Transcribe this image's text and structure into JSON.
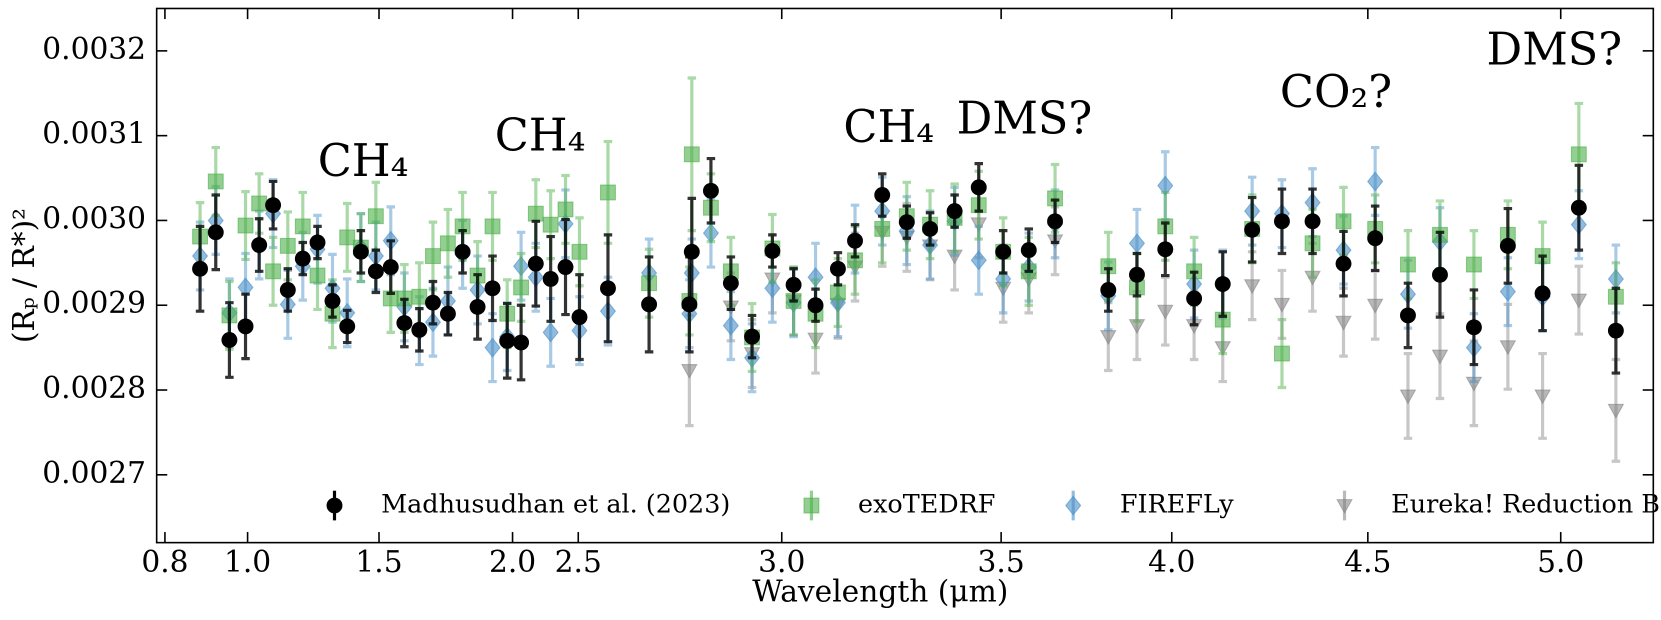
{
  "chart_data": {
    "type": "errorbar",
    "xlabel": "Wavelength (μm)",
    "ylabel": "(Rₚ / R*)²",
    "annotations": [
      "CH₄",
      "CH₄",
      "CH₄",
      "DMS?",
      "CO₂?",
      "DMS?"
    ],
    "xscale": "piecewise",
    "xlim": [
      0.78,
      5.24
    ],
    "ylim": [
      0.00262,
      0.00325
    ],
    "xticks": [
      0.8,
      {
        "value": 1.0,
        "label": "1.0"
      },
      1.5,
      {
        "value": 2.0,
        "label": "2.0"
      },
      2.5,
      {
        "value": 3.0,
        "label": "3.0"
      },
      3.5,
      {
        "value": 4.0,
        "label": "4.0"
      },
      4.5,
      {
        "value": 5.0,
        "label": "5.0"
      }
    ],
    "yticks": [
      0.0027,
      0.0028,
      0.0029,
      {
        "value": 0.003,
        "label": "0.0030"
      },
      0.0031,
      0.0032
    ],
    "legend": "lower center",
    "x": [
      0.885,
      0.923,
      0.956,
      0.995,
      1.044,
      1.097,
      1.153,
      1.21,
      1.266,
      1.323,
      1.379,
      1.431,
      1.488,
      1.544,
      1.595,
      1.651,
      1.702,
      1.758,
      1.813,
      1.869,
      1.925,
      1.98,
      2.065,
      2.177,
      2.29,
      2.403,
      2.503,
      2.573,
      2.674,
      2.773,
      2.779,
      2.826,
      2.875,
      2.927,
      2.977,
      3.027,
      3.077,
      3.128,
      3.167,
      3.229,
      3.285,
      3.338,
      3.394,
      3.449,
      3.506,
      3.581,
      3.658,
      3.814,
      3.898,
      3.981,
      4.057,
      4.13,
      4.205,
      4.281,
      4.359,
      4.438,
      4.519,
      4.604,
      4.687,
      4.775,
      4.863,
      4.953,
      5.047,
      5.143
    ],
    "series": [
      {
        "name": "Madhusudhan et al. (2023)",
        "color": "#000000",
        "marker": "circle",
        "values": [
          0.002943,
          0.002986,
          0.002859,
          0.002875,
          0.002971,
          0.003018,
          0.002918,
          0.002955,
          0.002974,
          0.002905,
          0.002875,
          0.002963,
          0.00294,
          0.002945,
          0.002879,
          0.002871,
          0.002903,
          0.00289,
          0.002963,
          0.002898,
          0.00292,
          0.002858,
          0.002856,
          0.002949,
          0.002931,
          0.002945,
          0.002886,
          0.00292,
          0.002901,
          0.002901,
          0.002963,
          0.003035,
          0.002926,
          0.002863,
          0.002964,
          0.002924,
          0.0029,
          0.002943,
          0.002976,
          0.00303,
          0.002998,
          0.00299,
          0.003011,
          0.003039,
          0.002963,
          0.002965,
          0.002999,
          0.002918,
          0.002936,
          0.002966,
          0.002908,
          0.002925,
          0.002989,
          0.002999,
          0.002999,
          0.002949,
          0.002979,
          0.002888,
          0.002936,
          0.002874,
          0.00297,
          0.002914,
          0.003015,
          0.00287
        ],
        "errors": [
          5e-05,
          4.4e-05,
          4.4e-05,
          3.8e-05,
          3.1e-05,
          2.8e-05,
          2.5e-05,
          1.9e-05,
          1.9e-05,
          1.9e-05,
          1.9e-05,
          2.5e-05,
          2.5e-05,
          3.1e-05,
          2.8e-05,
          2.5e-05,
          2.5e-05,
          2.5e-05,
          2.5e-05,
          3.8e-05,
          3.8e-05,
          4.4e-05,
          4.4e-05,
          5e-05,
          5e-05,
          5.6e-05,
          5e-05,
          6.3e-05,
          5.6e-05,
          5.6e-05,
          6.3e-05,
          3.8e-05,
          3.1e-05,
          2.5e-05,
          1.9e-05,
          1.9e-05,
          1.9e-05,
          1.9e-05,
          1.9e-05,
          2.5e-05,
          1.9e-05,
          1.9e-05,
          1.9e-05,
          2.8e-05,
          2.5e-05,
          2.5e-05,
          2.5e-05,
          2.5e-05,
          2.5e-05,
          3.1e-05,
          3.1e-05,
          3.8e-05,
          3.8e-05,
          3.8e-05,
          3.8e-05,
          3.8e-05,
          3.8e-05,
          3.8e-05,
          5e-05,
          4.4e-05,
          4.4e-05,
          4.4e-05,
          5e-05,
          5e-05
        ]
      },
      {
        "name": "exoTEDRF",
        "color": "#4daf4a",
        "marker": "square",
        "values": [
          0.002981,
          0.003046,
          0.002888,
          0.002994,
          0.00302,
          0.00294,
          0.00297,
          0.002993,
          0.002935,
          0.00289,
          0.00298,
          0.002968,
          0.003005,
          0.002908,
          0.002908,
          0.00291,
          0.002958,
          0.002973,
          0.002993,
          0.002935,
          0.002993,
          0.00289,
          0.002921,
          0.003008,
          0.002995,
          0.003013,
          0.002963,
          0.003033,
          0.002926,
          0.002905,
          0.003078,
          0.003015,
          0.00294,
          0.002862,
          0.002967,
          0.002905,
          0.00289,
          0.002915,
          0.002953,
          0.00299,
          0.003005,
          0.002995,
          0.003003,
          0.003018,
          0.002963,
          0.00294,
          0.003026,
          0.002946,
          0.002921,
          0.002993,
          0.00294,
          0.002883,
          0.00299,
          0.002843,
          0.002973,
          0.002999,
          0.00299,
          0.002948,
          0.002983,
          0.002948,
          0.002983,
          0.002958,
          0.003078,
          0.00291
        ],
        "errors": [
          4e-05,
          4e-05,
          4e-05,
          4e-05,
          3.5e-05,
          4e-05,
          4e-05,
          4e-05,
          4e-05,
          4e-05,
          4e-05,
          4e-05,
          4e-05,
          4e-05,
          4e-05,
          4e-05,
          4e-05,
          4e-05,
          4e-05,
          4e-05,
          4e-05,
          4e-05,
          4e-05,
          4e-05,
          4e-05,
          4e-05,
          4e-05,
          6e-05,
          4e-05,
          4e-05,
          9e-05,
          4e-05,
          4e-05,
          4e-05,
          4e-05,
          4e-05,
          4e-05,
          4e-05,
          4e-05,
          4e-05,
          4e-05,
          4e-05,
          4e-05,
          4e-05,
          4e-05,
          4e-05,
          4e-05,
          4e-05,
          4e-05,
          4e-05,
          4e-05,
          4e-05,
          4e-05,
          4e-05,
          4e-05,
          4e-05,
          4e-05,
          4e-05,
          4e-05,
          4e-05,
          4e-05,
          4e-05,
          6e-05,
          4e-05
        ]
      },
      {
        "name": "FIREFLy",
        "color": "#4a90c8",
        "marker": "diamond",
        "values": [
          0.002958,
          0.003,
          0.002891,
          0.002921,
          0.002971,
          0.003008,
          0.002901,
          0.002946,
          0.002966,
          0.00292,
          0.002891,
          0.002968,
          0.002958,
          0.002976,
          0.002898,
          0.00287,
          0.00288,
          0.002905,
          0.00296,
          0.002918,
          0.00285,
          0.002863,
          0.002946,
          0.002933,
          0.002868,
          0.002996,
          0.00287,
          0.002893,
          0.002938,
          0.00289,
          0.002938,
          0.002985,
          0.002876,
          0.002838,
          0.00292,
          0.002903,
          0.002933,
          0.002903,
          0.002978,
          0.003011,
          0.002988,
          0.002971,
          0.002999,
          0.002953,
          0.002931,
          0.002945,
          0.002996,
          0.002911,
          0.002973,
          0.003041,
          0.002925,
          0.002925,
          0.003011,
          0.003008,
          0.003021,
          0.002965,
          0.003046,
          0.002913,
          0.002975,
          0.00285,
          0.002916,
          0.00291,
          0.002995,
          0.002931
        ],
        "errors": [
          4e-05,
          4e-05,
          4e-05,
          4e-05,
          4e-05,
          4e-05,
          4e-05,
          4e-05,
          4e-05,
          4e-05,
          4e-05,
          4e-05,
          4e-05,
          4e-05,
          4e-05,
          4e-05,
          4e-05,
          4e-05,
          4e-05,
          4e-05,
          4e-05,
          4e-05,
          4e-05,
          4e-05,
          4e-05,
          4e-05,
          4e-05,
          4e-05,
          4e-05,
          4e-05,
          4e-05,
          4e-05,
          4e-05,
          4e-05,
          4e-05,
          4e-05,
          4e-05,
          4e-05,
          4e-05,
          4e-05,
          4e-05,
          4e-05,
          4e-05,
          4e-05,
          4e-05,
          4e-05,
          4e-05,
          4e-05,
          4e-05,
          4e-05,
          4e-05,
          4e-05,
          4e-05,
          4e-05,
          4e-05,
          4e-05,
          4e-05,
          4e-05,
          4e-05,
          4e-05,
          4e-05,
          4e-05,
          4e-05,
          4e-05
        ]
      },
      {
        "name": "Eureka! Reduction B",
        "color": "#808080",
        "marker": "triangle-down",
        "values": [
          null,
          null,
          null,
          null,
          null,
          null,
          null,
          null,
          null,
          null,
          null,
          null,
          null,
          null,
          null,
          null,
          null,
          null,
          null,
          null,
          null,
          null,
          null,
          null,
          null,
          null,
          null,
          null,
          null,
          0.002823,
          null,
          null,
          0.002898,
          0.002843,
          0.002931,
          0.002905,
          0.00286,
          0.002901,
          0.002945,
          0.002986,
          0.00298,
          0.00297,
          0.002958,
          0.002996,
          0.00292,
          0.002931,
          0.002976,
          0.002863,
          0.002876,
          0.002893,
          0.002876,
          0.00285,
          0.002923,
          0.002901,
          0.002933,
          0.00288,
          0.0029,
          0.002793,
          0.00284,
          0.002808,
          0.002851,
          0.002793,
          0.002906,
          0.002776
        ],
        "errors": [
          null,
          null,
          null,
          null,
          null,
          null,
          null,
          null,
          null,
          null,
          null,
          null,
          null,
          null,
          null,
          null,
          null,
          null,
          null,
          null,
          null,
          null,
          null,
          null,
          null,
          null,
          null,
          null,
          null,
          6.5e-05,
          null,
          null,
          4e-05,
          4e-05,
          4e-05,
          4e-05,
          4e-05,
          4e-05,
          4e-05,
          4e-05,
          4e-05,
          4e-05,
          4e-05,
          4e-05,
          4e-05,
          4e-05,
          4e-05,
          4e-05,
          4e-05,
          4e-05,
          4e-05,
          4e-05,
          4e-05,
          4e-05,
          4e-05,
          4e-05,
          4e-05,
          5e-05,
          5e-05,
          5e-05,
          5e-05,
          5e-05,
          4e-05,
          6e-05
        ]
      }
    ]
  }
}
